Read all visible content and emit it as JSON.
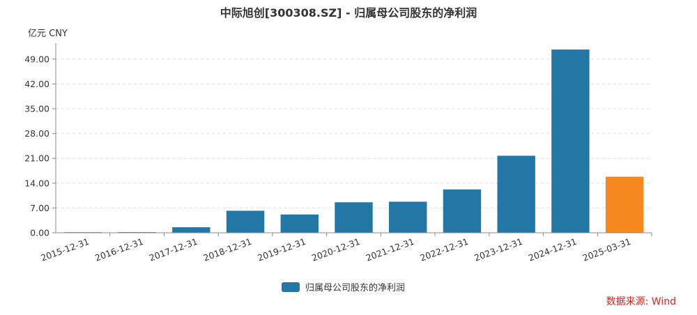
{
  "chart_data": {
    "type": "bar",
    "title": "中际旭创[300308.SZ] - 归属母公司股东的净利润",
    "unit_label": "亿元  CNY",
    "categories": [
      "2015-12-31",
      "2016-12-31",
      "2017-12-31",
      "2018-12-31",
      "2019-12-31",
      "2020-12-31",
      "2021-12-31",
      "2022-12-31",
      "2023-12-31",
      "2024-12-31",
      "2025-03-31"
    ],
    "series": [
      {
        "name": "归属母公司股东的净利润",
        "values": [
          0.08,
          0.18,
          1.55,
          6.21,
          5.16,
          8.6,
          8.77,
          12.24,
          21.74,
          51.71,
          15.83
        ]
      }
    ],
    "ylim": [
      0,
      53.5
    ],
    "yticks": [
      "0.00",
      "7.00",
      "14.00",
      "21.00",
      "28.00",
      "35.00",
      "42.00",
      "49.00"
    ],
    "ytick_values": [
      0,
      7,
      14,
      21,
      28,
      35,
      42,
      49
    ],
    "colors": {
      "bar": "#2277a4",
      "highlight_bar": "#f5891f"
    },
    "highlight_index": 10,
    "grid": true,
    "legend_position": "bottom-center",
    "source": "数据来源: Wind"
  }
}
